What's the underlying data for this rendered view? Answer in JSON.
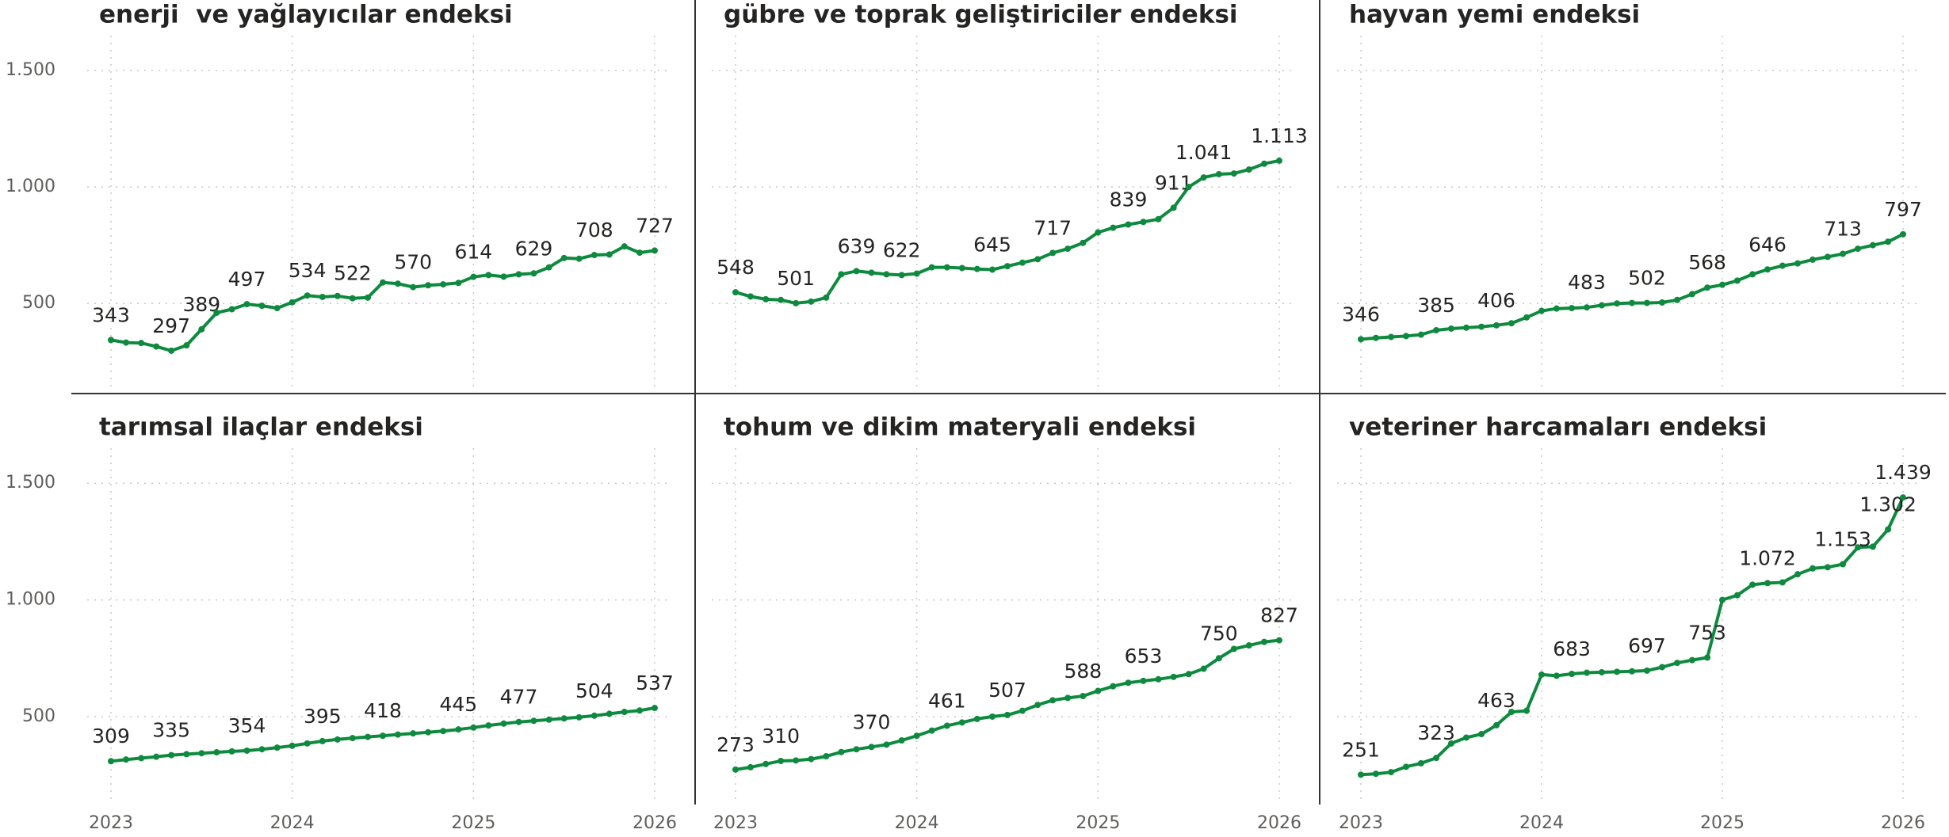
{
  "chart_data": {
    "type": "line",
    "color": "#0e8a3f",
    "grid": true,
    "xlim": [
      2023,
      2026
    ],
    "xticks": [
      2023,
      2024,
      2025,
      2026
    ],
    "ylim": [
      130,
      1650
    ],
    "yticks": [
      {
        "value": 500,
        "label": "500"
      },
      {
        "value": 1000,
        "label": "1.000"
      },
      {
        "value": 1500,
        "label": "1.500"
      }
    ],
    "x": [
      2023,
      2023.083,
      2023.167,
      2023.25,
      2023.333,
      2023.417,
      2023.5,
      2023.583,
      2023.667,
      2023.75,
      2023.833,
      2023.917,
      2024,
      2024.083,
      2024.167,
      2024.25,
      2024.333,
      2024.417,
      2024.5,
      2024.583,
      2024.667,
      2024.75,
      2024.833,
      2024.917,
      2025,
      2025.083,
      2025.167,
      2025.25,
      2025.333,
      2025.417,
      2025.5,
      2025.583,
      2025.667,
      2025.75,
      2025.833,
      2025.917,
      2026
    ],
    "panels": [
      {
        "title": "enerji  ve yağlayıcılar endeksi",
        "values": [
          343,
          332,
          330,
          315,
          297,
          320,
          389,
          460,
          475,
          497,
          490,
          480,
          505,
          534,
          528,
          532,
          522,
          525,
          590,
          585,
          570,
          578,
          582,
          588,
          614,
          622,
          615,
          625,
          629,
          655,
          695,
          692,
          708,
          710,
          745,
          718,
          727
        ],
        "value_labels": [
          "343",
          null,
          null,
          null,
          "297",
          null,
          "389",
          null,
          null,
          "497",
          null,
          null,
          null,
          "534",
          null,
          null,
          "522",
          null,
          null,
          null,
          "570",
          null,
          null,
          null,
          "614",
          null,
          null,
          null,
          "629",
          null,
          null,
          null,
          "708",
          null,
          null,
          null,
          "727"
        ]
      },
      {
        "title": "gübre ve toprak geliştiriciler endeksi",
        "values": [
          548,
          530,
          518,
          515,
          501,
          508,
          525,
          625,
          639,
          632,
          625,
          622,
          628,
          655,
          655,
          652,
          648,
          645,
          660,
          675,
          690,
          717,
          735,
          760,
          805,
          825,
          839,
          850,
          862,
          911,
          1000,
          1041,
          1055,
          1058,
          1075,
          1100,
          1113
        ],
        "value_labels": [
          "548",
          null,
          null,
          null,
          "501",
          null,
          null,
          null,
          "639",
          null,
          null,
          "622",
          null,
          null,
          null,
          null,
          null,
          "645",
          null,
          null,
          null,
          "717",
          null,
          null,
          null,
          null,
          "839",
          null,
          null,
          "911",
          null,
          "1.041",
          null,
          null,
          null,
          null,
          "1.113"
        ]
      },
      {
        "title": "hayvan yemi endeksi",
        "values": [
          346,
          352,
          356,
          360,
          366,
          385,
          392,
          396,
          400,
          406,
          415,
          440,
          468,
          478,
          480,
          483,
          492,
          500,
          502,
          502,
          504,
          515,
          540,
          568,
          580,
          598,
          625,
          646,
          662,
          672,
          688,
          700,
          713,
          735,
          750,
          765,
          797
        ],
        "value_labels": [
          "346",
          null,
          null,
          null,
          null,
          "385",
          null,
          null,
          null,
          "406",
          null,
          null,
          null,
          null,
          null,
          "483",
          null,
          null,
          null,
          "502",
          null,
          null,
          null,
          "568",
          null,
          null,
          null,
          "646",
          null,
          null,
          null,
          null,
          "713",
          null,
          null,
          null,
          "797"
        ]
      },
      {
        "title": "tarımsal ilaçlar endeksi",
        "values": [
          309,
          316,
          322,
          328,
          335,
          339,
          343,
          347,
          351,
          354,
          360,
          367,
          375,
          385,
          395,
          402,
          408,
          413,
          418,
          423,
          428,
          433,
          438,
          445,
          453,
          462,
          470,
          477,
          482,
          487,
          492,
          497,
          504,
          512,
          520,
          526,
          537
        ],
        "value_labels": [
          "309",
          null,
          null,
          null,
          "335",
          null,
          null,
          null,
          null,
          "354",
          null,
          null,
          null,
          null,
          "395",
          null,
          null,
          null,
          "418",
          null,
          null,
          null,
          null,
          "445",
          null,
          null,
          null,
          "477",
          null,
          null,
          null,
          null,
          "504",
          null,
          null,
          null,
          "537"
        ]
      },
      {
        "title": "tohum ve dikim materyali endeksi",
        "values": [
          273,
          283,
          297,
          310,
          312,
          318,
          330,
          348,
          360,
          370,
          380,
          398,
          418,
          440,
          461,
          475,
          490,
          500,
          507,
          525,
          550,
          570,
          580,
          588,
          610,
          630,
          645,
          653,
          660,
          670,
          682,
          705,
          750,
          790,
          805,
          820,
          827
        ],
        "value_labels": [
          "273",
          null,
          null,
          "310",
          null,
          null,
          null,
          null,
          null,
          "370",
          null,
          null,
          null,
          null,
          "461",
          null,
          null,
          null,
          "507",
          null,
          null,
          null,
          null,
          "588",
          null,
          null,
          null,
          "653",
          null,
          null,
          null,
          null,
          "750",
          null,
          null,
          null,
          "827"
        ]
      },
      {
        "title": "veteriner harcamaları endeksi",
        "values": [
          251,
          255,
          262,
          285,
          300,
          323,
          385,
          410,
          425,
          463,
          520,
          525,
          680,
          675,
          683,
          688,
          690,
          692,
          694,
          697,
          712,
          730,
          742,
          753,
          1000,
          1020,
          1065,
          1072,
          1075,
          1110,
          1135,
          1140,
          1153,
          1225,
          1228,
          1302,
          1439
        ],
        "value_labels": [
          "251",
          null,
          null,
          null,
          null,
          "323",
          null,
          null,
          null,
          "463",
          null,
          null,
          null,
          null,
          "683",
          null,
          null,
          null,
          null,
          "697",
          null,
          null,
          null,
          "753",
          null,
          null,
          null,
          "1.072",
          null,
          null,
          null,
          null,
          "1.153",
          null,
          null,
          "1.302",
          "1.439"
        ]
      }
    ]
  }
}
